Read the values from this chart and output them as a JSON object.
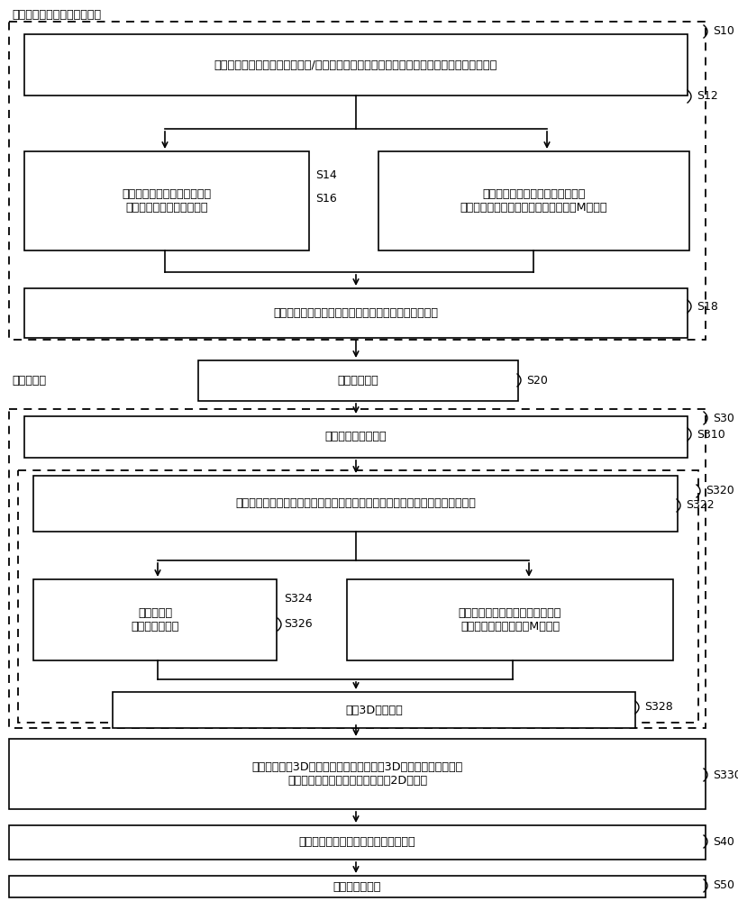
{
  "bg_color": "#ffffff",
  "label_top": "针对多类真实对象中的每一个",
  "label_each_class": "针对每个类",
  "label_s10": "S10",
  "label_s12": "S12",
  "label_s14": "S14",
  "label_s16": "S16",
  "label_s18": "S18",
  "label_s20": "S20",
  "label_s30": "S30",
  "label_s310": "S310",
  "label_s320": "S320",
  "label_s322": "S322",
  "label_s324": "S324",
  "label_s326": "S326",
  "label_s328": "S328",
  "label_s330": "S330",
  "label_s40": "S40",
  "label_s50": "S50",
  "box_s12_text": "定义包括尺寸参数、样式参数和/或纹理参数的一组参数，并且针对每个参数定义相应的范围",
  "box_s14_text": "将一个或多个参数范围标记为\n当形成数据集时要被遍历的",
  "box_s16_text": "针对已标记范围的值的每个组合，\n定义未标记范围的随机值的预确定数量M个组合",
  "box_s18_text": "定义一个或多个约束，每个约束将相应参数链接在一起",
  "box_s20_text": "初始化数据集",
  "box_s310_text": "提供类的参数化模型",
  "box_s322_text": "关于该组参数定义排序，排序给予被遍历的范围优先权并且基于一个或多个约束",
  "box_s324_text": "遍历标记为\n要被遍历的范围",
  "box_s326_text": "按照已标记范围的值的组合，提供\n未标记范围的随机值的M个组合",
  "box_s328_text": "输出3D建模对象",
  "box_s330_text": "向数据集添加3D建模对象，并且针对每个3D建模对象添加相应的\n一个或多个对应几何表示（例如，2D图像）",
  "box_s40_text": "离线：学习取几何表示作为输入的函数",
  "box_s50_text": "在线：使用函数"
}
